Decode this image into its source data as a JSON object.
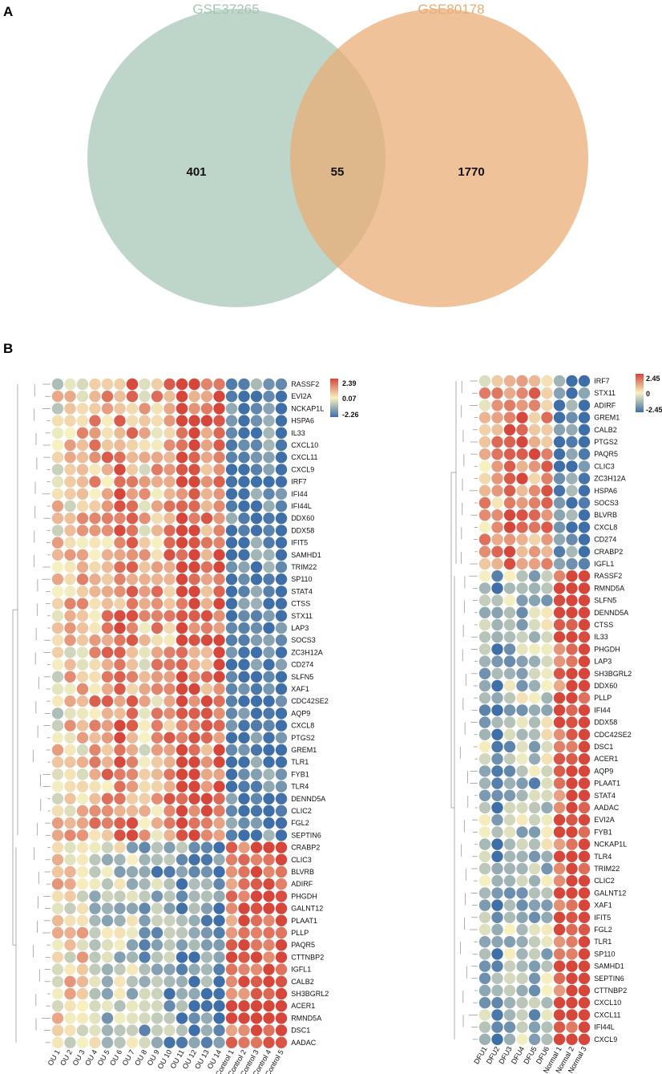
{
  "panels": {
    "a": "A",
    "b": "B"
  },
  "chart_data": [
    {
      "type": "venn",
      "sets": [
        {
          "name": "GSE37265",
          "color": "#a5c6b5",
          "only": 401
        },
        {
          "name": "GSE80178",
          "color": "#eaab72",
          "only": 1770
        }
      ],
      "intersection": 55
    },
    {
      "type": "heatmap",
      "style": "dot",
      "legend": {
        "max": "2.39",
        "mid": "0.07",
        "min": "-2.26"
      },
      "columns": [
        "OU 1",
        "OU 2",
        "OU 3",
        "OU 4",
        "OU 5",
        "OU 6",
        "OU 7",
        "OU 8",
        "OU 9",
        "OU 10",
        "OU 11",
        "OU 12",
        "OU 13",
        "OU 14",
        "Control 1",
        "Control 2",
        "Control 3",
        "Control 4",
        "Control 5"
      ],
      "rows": [
        "RASSF2",
        "EVI2A",
        "NCKAP1L",
        "HSPA6",
        "IL33",
        "CXCL10",
        "CXCL11",
        "CXCL9",
        "IRF7",
        "IFI44",
        "IFI44L",
        "DDX60",
        "DDX58",
        "IFIT5",
        "SAMHD1",
        "TRIM22",
        "SP110",
        "STAT4",
        "CTSS",
        "STX11",
        "LAP3",
        "SOCS3",
        "ZC3H12A",
        "CD274",
        "SLFN5",
        "XAF1",
        "CDC42SE2",
        "AQP9",
        "CXCL8",
        "PTGS2",
        "GREM1",
        "TLR1",
        "FYB1",
        "TLR4",
        "DENND5A",
        "CLIC2",
        "FGL2",
        "SEPTIN6",
        "CRABP2",
        "CLIC3",
        "BLVRB",
        "ADIRF",
        "PHGDH",
        "GALNT12",
        "PLAAT1",
        "PLLP",
        "PAQR5",
        "CTTNBP2",
        "IGFL1",
        "CALB2",
        "SH3BGRL2",
        "ACER1",
        "RMND5A",
        "DSC1",
        "AADAC"
      ],
      "cluster_1_rows": 38,
      "cluster_1_col_values": [
        0.05,
        0.2,
        0.25,
        0.4,
        0.45,
        0.6,
        0.55,
        0.2,
        0.35,
        0.5,
        0.95,
        0.8,
        0.65,
        0.9,
        -0.9,
        -1.0,
        -0.85,
        -0.9,
        -1.05
      ],
      "cluster_2_col_values": [
        0.15,
        0.1,
        0.1,
        -0.2,
        -0.3,
        -0.25,
        -0.35,
        -0.45,
        -0.55,
        -0.6,
        -0.75,
        -0.8,
        -0.7,
        -0.95,
        0.8,
        0.9,
        1.0,
        0.85,
        1.1
      ],
      "values_note": "Dot colour encodes z-score; approximate per-sample group trends read from the figure"
    },
    {
      "type": "heatmap",
      "style": "dot",
      "legend": {
        "max": "2.45",
        "mid": "0",
        "min": "-2.45"
      },
      "columns": [
        "DFU1",
        "DFU2",
        "DFU3",
        "DFU4",
        "DFU5",
        "DFU6",
        "Normal 1",
        "Normal 2",
        "Normal 3"
      ],
      "rows": [
        "IRF7",
        "STX11",
        "ADIRF",
        "GREM1",
        "CALB2",
        "PTGS2",
        "PAQR5",
        "CLIC3",
        "ZC3H12A",
        "HSPA6",
        "SOCS3",
        "BLVRB",
        "CXCL8",
        "CD274",
        "CRABP2",
        "IGFL1",
        "RASSF2",
        "RMND5A",
        "SLFN5",
        "DENND5A",
        "CTSS",
        "IL33",
        "PHGDH",
        "LAP3",
        "SH3BGRL2",
        "DDX60",
        "PLLP",
        "IFI44",
        "DDX58",
        "CDC42SE2",
        "DSC1",
        "ACER1",
        "AQP9",
        "PLAAT1",
        "STAT4",
        "AADAC",
        "EVI2A",
        "FYB1",
        "NCKAP1L",
        "TLR4",
        "TRIM22",
        "CLIC2",
        "GALNT12",
        "XAF1",
        "IFIT5",
        "FGL2",
        "TLR1",
        "SP110",
        "SAMHD1",
        "SEPTIN6",
        "CTTNBP2",
        "CXCL10",
        "CXCL11",
        "IFI44L",
        "CXCL9"
      ],
      "cluster_1_rows": 16,
      "cluster_1_col_values": [
        0.3,
        0.5,
        0.8,
        0.7,
        0.6,
        0.5,
        -0.9,
        -0.8,
        -1.0
      ],
      "cluster_2_col_values": [
        -0.4,
        -0.8,
        -0.4,
        -0.35,
        -0.45,
        -0.3,
        0.8,
        1.1,
        1.2
      ],
      "values_note": "Dot colour encodes z-score; approximate per-sample group trends read from the figure"
    }
  ]
}
